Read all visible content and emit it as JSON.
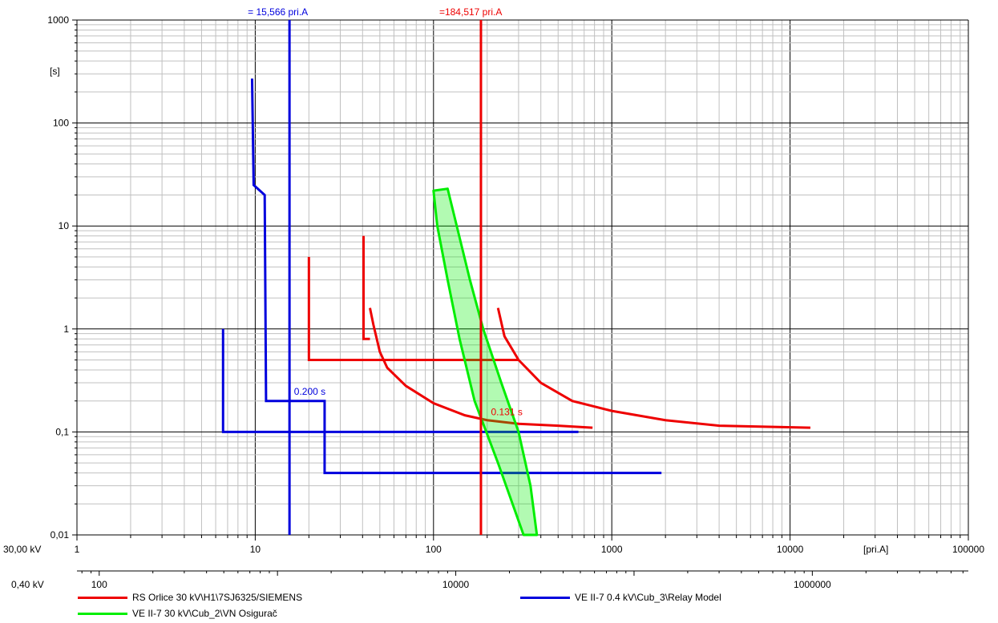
{
  "chart_data": {
    "type": "line",
    "title": "",
    "x_scale": "log",
    "y_scale": "log",
    "xlim": [
      1,
      100000
    ],
    "ylim": [
      0.01,
      1000
    ],
    "grid": true,
    "x_unit_label": "[pri.A]",
    "y_unit_label": "[s]",
    "voltage_scales": [
      {
        "label": "30,00 kV",
        "ticks": [
          {
            "v": 1,
            "t": "1"
          },
          {
            "v": 10,
            "t": "10"
          },
          {
            "v": 100,
            "t": "100"
          },
          {
            "v": 1000,
            "t": "1000"
          },
          {
            "v": 10000,
            "t": "10000"
          },
          {
            "v": 100000,
            "t": "100000"
          }
        ]
      },
      {
        "label": "0,40 kV",
        "ticks": [
          {
            "v": 1.333,
            "t": "100"
          },
          {
            "v": 133.3,
            "t": "10000"
          },
          {
            "v": 13333,
            "t": "1000000"
          }
        ]
      }
    ],
    "y_ticks": [
      {
        "v": 0.01,
        "t": "0,01"
      },
      {
        "v": 0.1,
        "t": "0,1"
      },
      {
        "v": 1,
        "t": "1"
      },
      {
        "v": 10,
        "t": "10"
      },
      {
        "v": 100,
        "t": "100"
      },
      {
        "v": 1000,
        "t": "1000"
      }
    ],
    "cursors": [
      {
        "x": 15.566,
        "color": "#0000dd",
        "label": "= 15,566 pri.A"
      },
      {
        "x": 184.517,
        "color": "#ee0000",
        "label": "=184,517 pri.A"
      }
    ],
    "annotations": [
      {
        "x": 16.5,
        "y": 0.23,
        "text": "0.200 s",
        "color": "#0000dd"
      },
      {
        "x": 210,
        "y": 0.145,
        "text": "0.131 s",
        "color": "#ee0000"
      }
    ],
    "series": [
      {
        "name": "RS Orlice 30 kV\\H1\\7SJ6325/SIEMENS",
        "color": "#ee0000",
        "segments": [
          [
            [
              20,
              5
            ],
            [
              20,
              0.5
            ],
            [
              300,
              0.5
            ]
          ],
          [
            [
              40.5,
              8
            ],
            [
              40.5,
              0.8
            ],
            [
              44,
              0.8
            ]
          ],
          [
            [
              44,
              1.6
            ],
            [
              46,
              1.1
            ],
            [
              50,
              0.6
            ],
            [
              55,
              0.42
            ],
            [
              70,
              0.28
            ],
            [
              100,
              0.19
            ],
            [
              150,
              0.145
            ],
            [
              200,
              0.13
            ],
            [
              300,
              0.12
            ],
            [
              500,
              0.115
            ],
            [
              780,
              0.11
            ]
          ],
          [
            [
              230,
              1.6
            ],
            [
              250,
              0.85
            ],
            [
              300,
              0.5
            ],
            [
              400,
              0.3
            ],
            [
              600,
              0.2
            ],
            [
              1000,
              0.16
            ],
            [
              2000,
              0.13
            ],
            [
              4000,
              0.115
            ],
            [
              13000,
              0.11
            ]
          ]
        ]
      },
      {
        "name": "VE II-7 0.4 kV\\Cub_3\\Relay Model",
        "color": "#0000dd",
        "segments": [
          [
            [
              9.6,
              270
            ],
            [
              9.8,
              25
            ],
            [
              11.3,
              20
            ],
            [
              11.5,
              0.2
            ],
            [
              24.5,
              0.2
            ],
            [
              24.5,
              0.04
            ],
            [
              1900,
              0.04
            ]
          ],
          [
            [
              6.6,
              1.0
            ],
            [
              6.6,
              0.1
            ],
            [
              650,
              0.1
            ]
          ]
        ]
      },
      {
        "name": "VE II-7 30 kV\\Cub_2\\VN Osigurač",
        "color": "#00ee00",
        "band": {
          "left": [
            [
              100,
              22
            ],
            [
              105,
              10
            ],
            [
              120,
              3
            ],
            [
              140,
              0.8
            ],
            [
              170,
              0.2
            ],
            [
              230,
              0.05
            ],
            [
              320,
              0.01
            ]
          ],
          "right": [
            [
              120,
              23
            ],
            [
              135,
              10
            ],
            [
              160,
              3
            ],
            [
              190,
              1
            ],
            [
              240,
              0.3
            ],
            [
              300,
              0.1
            ],
            [
              350,
              0.03
            ],
            [
              380,
              0.01
            ]
          ]
        },
        "segments": [
          [
            [
              100,
              22
            ],
            [
              105,
              10
            ],
            [
              120,
              3
            ],
            [
              140,
              0.8
            ],
            [
              170,
              0.2
            ],
            [
              210,
              0.18
            ]
          ],
          [
            [
              160,
              0.15
            ],
            [
              230,
              0.05
            ],
            [
              320,
              0.01
            ]
          ]
        ]
      }
    ],
    "legend": [
      {
        "label": "RS Orlice 30 kV\\H1\\7SJ6325/SIEMENS",
        "color": "#ee0000"
      },
      {
        "label": "VE II-7 0.4 kV\\Cub_3\\Relay Model",
        "color": "#0000dd"
      },
      {
        "label": "VE II-7 30 kV\\Cub_2\\VN Osigurač",
        "color": "#00ee00"
      }
    ]
  }
}
